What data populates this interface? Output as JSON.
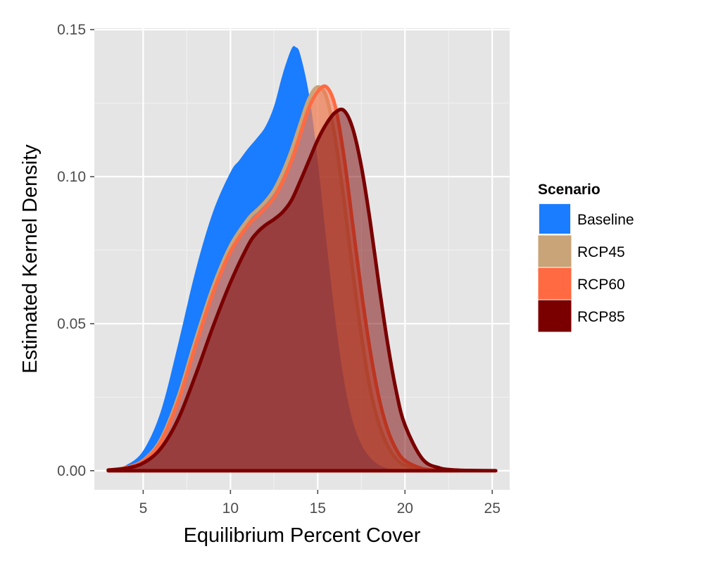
{
  "chart_data": {
    "type": "area",
    "title": "",
    "xlabel": "Equilibrium Percent Cover",
    "ylabel": "Estimated Kernel Density",
    "xlim": [
      2.2,
      26.0
    ],
    "ylim": [
      -0.0065,
      0.1505
    ],
    "x_ticks": [
      5,
      10,
      15,
      20,
      25
    ],
    "x_tick_labels": [
      "5",
      "10",
      "15",
      "20",
      "25"
    ],
    "y_ticks": [
      0.0,
      0.05,
      0.1,
      0.15
    ],
    "y_tick_labels": [
      "0.00",
      "0.05",
      "0.10",
      "0.15"
    ],
    "grid": true,
    "legend": {
      "title": "Scenario",
      "position": "right"
    },
    "series": [
      {
        "name": "Baseline",
        "fill": "#1a7cff",
        "fill_opacity": 1.0,
        "stroke": "#1a7cff",
        "x": [
          3.0,
          4.0,
          5.0,
          6.0,
          7.0,
          8.0,
          9.0,
          10.0,
          10.5,
          11.0,
          11.5,
          12.0,
          12.5,
          13.0,
          13.5,
          13.75,
          14.0,
          14.5,
          15.0,
          15.5,
          16.0,
          16.5,
          17.0,
          17.5,
          18.0,
          18.5,
          19.0,
          19.5,
          20.0
        ],
        "y": [
          0.0003,
          0.0018,
          0.0068,
          0.02,
          0.043,
          0.068,
          0.088,
          0.1015,
          0.1055,
          0.1095,
          0.113,
          0.117,
          0.124,
          0.135,
          0.1435,
          0.144,
          0.1415,
          0.128,
          0.1055,
          0.078,
          0.052,
          0.031,
          0.017,
          0.009,
          0.0045,
          0.002,
          0.0008,
          0.0003,
          0.0
        ]
      },
      {
        "name": "RCP45",
        "fill": "#c8a478",
        "fill_opacity": 0.5,
        "stroke": "#c8a478",
        "x": [
          3.0,
          4.0,
          5.0,
          6.0,
          7.0,
          8.0,
          9.0,
          10.0,
          11.0,
          11.5,
          12.0,
          12.5,
          13.0,
          13.5,
          14.0,
          14.5,
          15.0,
          15.5,
          16.0,
          16.5,
          17.0,
          17.5,
          18.0,
          18.5,
          19.0,
          19.5,
          20.0,
          21.0,
          22.0
        ],
        "y": [
          0.0002,
          0.001,
          0.0035,
          0.0105,
          0.025,
          0.0445,
          0.0625,
          0.0765,
          0.0855,
          0.0885,
          0.0915,
          0.0955,
          0.1015,
          0.109,
          0.118,
          0.1265,
          0.1305,
          0.127,
          0.113,
          0.092,
          0.068,
          0.046,
          0.028,
          0.016,
          0.0085,
          0.004,
          0.0018,
          0.0003,
          0.0
        ]
      },
      {
        "name": "RCP60",
        "fill": "#ff6a42",
        "fill_opacity": 0.5,
        "stroke": "#ff6a42",
        "x": [
          3.0,
          4.0,
          5.0,
          6.0,
          7.0,
          8.0,
          9.0,
          10.0,
          11.0,
          11.5,
          12.0,
          12.5,
          13.0,
          13.5,
          14.0,
          14.5,
          15.0,
          15.5,
          16.0,
          16.5,
          17.0,
          17.5,
          18.0,
          18.5,
          19.0,
          19.5,
          20.0,
          21.0,
          22.0,
          23.0
        ],
        "y": [
          0.0002,
          0.001,
          0.0033,
          0.0098,
          0.0235,
          0.0425,
          0.0605,
          0.0745,
          0.0835,
          0.0865,
          0.0895,
          0.093,
          0.0985,
          0.1055,
          0.1145,
          0.1235,
          0.129,
          0.1305,
          0.124,
          0.107,
          0.084,
          0.061,
          0.041,
          0.025,
          0.014,
          0.0072,
          0.0034,
          0.0007,
          0.0001,
          0.0
        ]
      },
      {
        "name": "RCP85",
        "fill": "#7a0000",
        "fill_opacity": 0.5,
        "stroke": "#7a0000",
        "x": [
          3.0,
          4.0,
          5.0,
          6.0,
          7.0,
          8.0,
          9.0,
          10.0,
          11.0,
          11.5,
          12.0,
          12.5,
          13.0,
          13.5,
          14.0,
          14.5,
          15.0,
          15.5,
          16.0,
          16.5,
          17.0,
          17.5,
          18.0,
          18.5,
          19.0,
          19.5,
          20.0,
          21.0,
          22.0,
          23.0,
          24.0,
          25.2
        ],
        "y": [
          0.0002,
          0.0008,
          0.0026,
          0.0075,
          0.0175,
          0.0325,
          0.049,
          0.064,
          0.0765,
          0.0808,
          0.0835,
          0.0855,
          0.088,
          0.092,
          0.0985,
          0.1055,
          0.1125,
          0.118,
          0.1218,
          0.1225,
          0.1165,
          0.1035,
          0.085,
          0.0635,
          0.0435,
          0.027,
          0.0155,
          0.004,
          0.0009,
          0.0002,
          5e-05,
          0.0
        ]
      }
    ]
  }
}
